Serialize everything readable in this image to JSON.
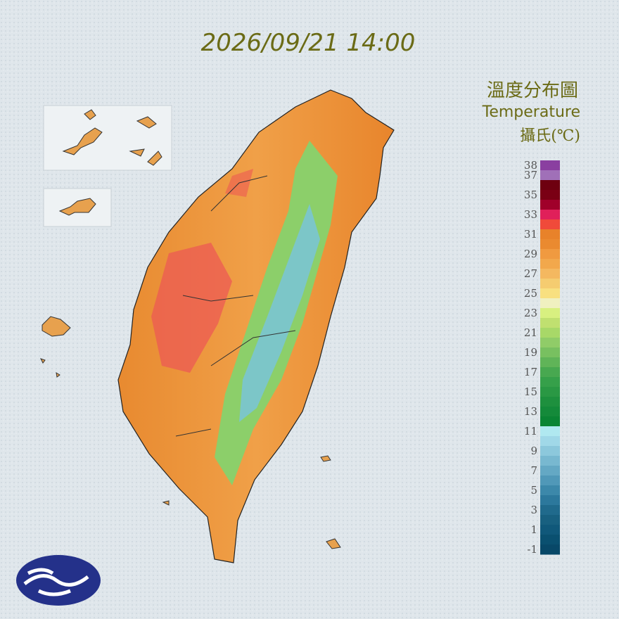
{
  "header": {
    "title": "2026/09/21 14:00"
  },
  "legend": {
    "title": "溫度分布圖",
    "subtitle": "Temperature",
    "unit": "攝氏(℃)",
    "ticks": [
      38,
      37,
      35,
      33,
      31,
      29,
      27,
      25,
      23,
      21,
      19,
      17,
      15,
      13,
      11,
      9,
      7,
      5,
      3,
      1,
      -1
    ],
    "colors": [
      "#8a3fa0",
      "#a070b8",
      "#6e0010",
      "#7a0014",
      "#a0002a",
      "#e0205a",
      "#f04a3a",
      "#e8822a",
      "#ea8a30",
      "#f09a40",
      "#f2a84c",
      "#f4b860",
      "#f5cc70",
      "#f8e080",
      "#f0f0c0",
      "#d8f080",
      "#c0e070",
      "#a8d868",
      "#90cc68",
      "#78c060",
      "#60b458",
      "#48a850",
      "#36a04a",
      "#2a9844",
      "#1e903e",
      "#148a3a",
      "#0a8434",
      "#b0e8f0",
      "#a0d8e8",
      "#8cc8dc",
      "#78b8d0",
      "#64a8c4",
      "#5098b8",
      "#3c88aa",
      "#2c789c",
      "#206a8c",
      "#186080",
      "#10587a",
      "#0a5070",
      "#084868"
    ]
  }
}
